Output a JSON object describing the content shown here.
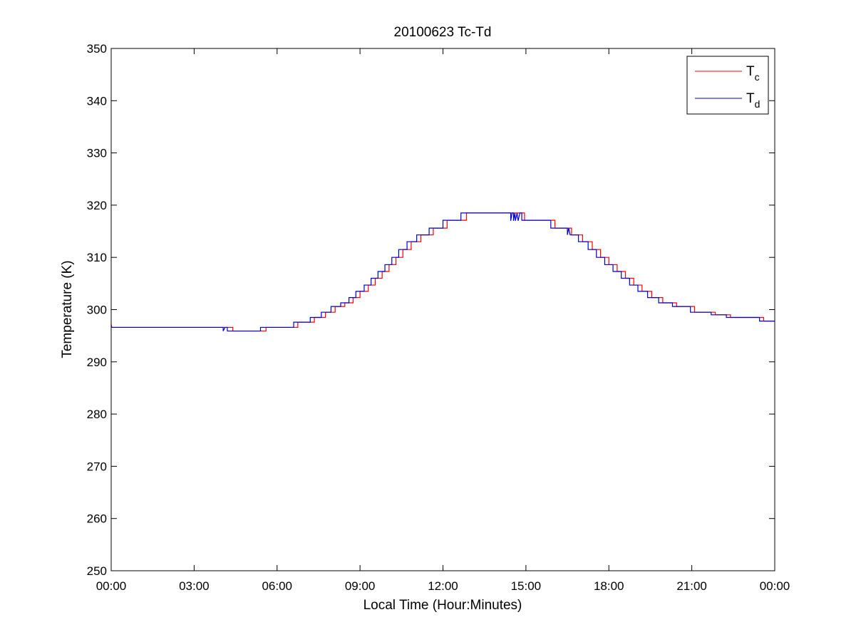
{
  "chart_data": {
    "type": "line",
    "title": "20100623 Tc-Td",
    "xlabel": "Local Time (Hour:Minutes)",
    "ylabel": "Temperature (K)",
    "xlim": [
      0,
      24
    ],
    "ylim": [
      250,
      350
    ],
    "x_ticks": [
      {
        "value": 0,
        "label": "00:00"
      },
      {
        "value": 3,
        "label": "03:00"
      },
      {
        "value": 6,
        "label": "06:00"
      },
      {
        "value": 9,
        "label": "09:00"
      },
      {
        "value": 12,
        "label": "12:00"
      },
      {
        "value": 15,
        "label": "15:00"
      },
      {
        "value": 18,
        "label": "18:00"
      },
      {
        "value": 21,
        "label": "21:00"
      },
      {
        "value": 24,
        "label": "00:00"
      }
    ],
    "y_ticks": [
      {
        "value": 250,
        "label": "250"
      },
      {
        "value": 260,
        "label": "260"
      },
      {
        "value": 270,
        "label": "270"
      },
      {
        "value": 280,
        "label": "280"
      },
      {
        "value": 290,
        "label": "290"
      },
      {
        "value": 300,
        "label": "300"
      },
      {
        "value": 310,
        "label": "310"
      },
      {
        "value": 320,
        "label": "320"
      },
      {
        "value": 330,
        "label": "330"
      },
      {
        "value": 340,
        "label": "340"
      },
      {
        "value": 350,
        "label": "350"
      }
    ],
    "grid": false,
    "legend": "top-right",
    "series": [
      {
        "name": "Tc",
        "label_main": "T",
        "label_sub": "c",
        "color": "#ff0000",
        "points": [
          [
            0.0,
            297.2
          ],
          [
            0.02,
            296.6
          ],
          [
            4.05,
            296.6
          ],
          [
            4.4,
            296.6
          ],
          [
            4.4,
            295.9
          ],
          [
            5.6,
            295.9
          ],
          [
            5.6,
            296.6
          ],
          [
            6.75,
            296.6
          ],
          [
            6.75,
            297.6
          ],
          [
            7.35,
            297.6
          ],
          [
            7.35,
            298.5
          ],
          [
            7.75,
            298.5
          ],
          [
            7.75,
            299.5
          ],
          [
            8.1,
            299.5
          ],
          [
            8.1,
            300.6
          ],
          [
            8.45,
            300.6
          ],
          [
            8.45,
            301.3
          ],
          [
            8.75,
            301.3
          ],
          [
            8.75,
            302.3
          ],
          [
            9.0,
            302.3
          ],
          [
            9.0,
            303.5
          ],
          [
            9.3,
            303.5
          ],
          [
            9.3,
            304.7
          ],
          [
            9.55,
            304.7
          ],
          [
            9.55,
            306.0
          ],
          [
            9.8,
            306.0
          ],
          [
            9.8,
            307.3
          ],
          [
            10.05,
            307.3
          ],
          [
            10.05,
            308.6
          ],
          [
            10.3,
            308.6
          ],
          [
            10.3,
            310.0
          ],
          [
            10.55,
            310.0
          ],
          [
            10.55,
            311.5
          ],
          [
            10.85,
            311.5
          ],
          [
            10.85,
            313.0
          ],
          [
            11.2,
            313.0
          ],
          [
            11.2,
            314.3
          ],
          [
            11.65,
            314.3
          ],
          [
            11.65,
            315.6
          ],
          [
            12.15,
            315.6
          ],
          [
            12.15,
            317.1
          ],
          [
            12.85,
            317.1
          ],
          [
            12.85,
            318.5
          ],
          [
            14.6,
            318.5
          ],
          [
            14.95,
            318.5
          ],
          [
            14.95,
            317.1
          ],
          [
            16.05,
            317.1
          ],
          [
            16.05,
            315.6
          ],
          [
            16.65,
            315.6
          ],
          [
            16.65,
            314.3
          ],
          [
            17.05,
            314.3
          ],
          [
            17.05,
            313.0
          ],
          [
            17.4,
            313.0
          ],
          [
            17.4,
            311.5
          ],
          [
            17.7,
            311.5
          ],
          [
            17.7,
            310.0
          ],
          [
            18.0,
            310.0
          ],
          [
            18.0,
            308.6
          ],
          [
            18.3,
            308.6
          ],
          [
            18.3,
            307.3
          ],
          [
            18.6,
            307.3
          ],
          [
            18.6,
            306.0
          ],
          [
            18.9,
            306.0
          ],
          [
            18.9,
            304.7
          ],
          [
            19.2,
            304.7
          ],
          [
            19.2,
            303.5
          ],
          [
            19.55,
            303.5
          ],
          [
            19.55,
            302.3
          ],
          [
            19.95,
            302.3
          ],
          [
            19.95,
            301.3
          ],
          [
            20.45,
            301.3
          ],
          [
            20.45,
            300.6
          ],
          [
            21.1,
            300.6
          ],
          [
            21.1,
            299.5
          ],
          [
            21.85,
            299.5
          ],
          [
            21.85,
            299.0
          ],
          [
            22.4,
            299.0
          ],
          [
            22.4,
            298.5
          ],
          [
            23.6,
            298.5
          ],
          [
            23.6,
            297.8
          ],
          [
            24.0,
            297.8
          ]
        ]
      },
      {
        "name": "Td",
        "label_main": "T",
        "label_sub": "d",
        "color": "#0000cc",
        "points": [
          [
            0.0,
            296.6
          ],
          [
            4.05,
            296.6
          ],
          [
            4.05,
            295.9
          ],
          [
            4.12,
            296.6
          ],
          [
            4.2,
            296.6
          ],
          [
            4.2,
            295.9
          ],
          [
            5.4,
            295.9
          ],
          [
            5.4,
            296.6
          ],
          [
            6.6,
            296.6
          ],
          [
            6.6,
            297.6
          ],
          [
            7.2,
            297.6
          ],
          [
            7.2,
            298.5
          ],
          [
            7.6,
            298.5
          ],
          [
            7.6,
            299.5
          ],
          [
            7.95,
            299.5
          ],
          [
            7.95,
            300.6
          ],
          [
            8.3,
            300.6
          ],
          [
            8.3,
            301.3
          ],
          [
            8.6,
            301.3
          ],
          [
            8.6,
            302.3
          ],
          [
            8.85,
            302.3
          ],
          [
            8.85,
            303.5
          ],
          [
            9.15,
            303.5
          ],
          [
            9.15,
            304.7
          ],
          [
            9.4,
            304.7
          ],
          [
            9.4,
            306.0
          ],
          [
            9.65,
            306.0
          ],
          [
            9.65,
            307.3
          ],
          [
            9.9,
            307.3
          ],
          [
            9.9,
            308.6
          ],
          [
            10.15,
            308.6
          ],
          [
            10.15,
            310.0
          ],
          [
            10.4,
            310.0
          ],
          [
            10.4,
            311.5
          ],
          [
            10.7,
            311.5
          ],
          [
            10.7,
            313.0
          ],
          [
            11.05,
            313.0
          ],
          [
            11.05,
            314.3
          ],
          [
            11.5,
            314.3
          ],
          [
            11.5,
            315.6
          ],
          [
            12.0,
            315.6
          ],
          [
            12.0,
            317.1
          ],
          [
            12.65,
            317.1
          ],
          [
            12.65,
            318.5
          ],
          [
            14.45,
            318.5
          ],
          [
            14.45,
            317.0
          ],
          [
            14.5,
            318.5
          ],
          [
            14.55,
            318.5
          ],
          [
            14.55,
            317.0
          ],
          [
            14.6,
            318.5
          ],
          [
            14.62,
            317.0
          ],
          [
            14.68,
            318.5
          ],
          [
            14.72,
            317.0
          ],
          [
            14.78,
            318.5
          ],
          [
            14.85,
            318.5
          ],
          [
            14.85,
            317.1
          ],
          [
            15.9,
            317.1
          ],
          [
            15.9,
            315.6
          ],
          [
            16.5,
            315.6
          ],
          [
            16.5,
            314.3
          ],
          [
            16.55,
            315.6
          ],
          [
            16.6,
            314.3
          ],
          [
            16.9,
            314.3
          ],
          [
            16.9,
            313.0
          ],
          [
            17.25,
            313.0
          ],
          [
            17.25,
            311.5
          ],
          [
            17.55,
            311.5
          ],
          [
            17.55,
            310.0
          ],
          [
            17.85,
            310.0
          ],
          [
            17.85,
            308.6
          ],
          [
            18.15,
            308.6
          ],
          [
            18.15,
            307.3
          ],
          [
            18.45,
            307.3
          ],
          [
            18.45,
            306.0
          ],
          [
            18.75,
            306.0
          ],
          [
            18.75,
            304.7
          ],
          [
            19.05,
            304.7
          ],
          [
            19.05,
            303.5
          ],
          [
            19.4,
            303.5
          ],
          [
            19.4,
            302.3
          ],
          [
            19.8,
            302.3
          ],
          [
            19.8,
            301.3
          ],
          [
            20.3,
            301.3
          ],
          [
            20.3,
            300.6
          ],
          [
            20.95,
            300.6
          ],
          [
            20.95,
            299.5
          ],
          [
            21.7,
            299.5
          ],
          [
            21.7,
            299.0
          ],
          [
            22.25,
            299.0
          ],
          [
            22.25,
            298.5
          ],
          [
            23.45,
            298.5
          ],
          [
            23.45,
            297.8
          ],
          [
            24.0,
            297.8
          ]
        ]
      }
    ]
  }
}
